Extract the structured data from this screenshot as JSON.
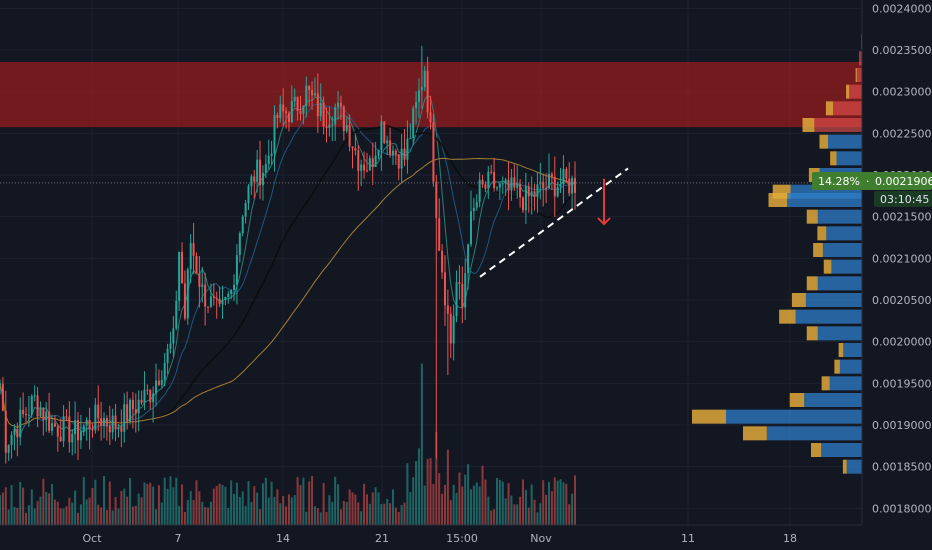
{
  "theme": {
    "background": "#131722",
    "grid": "#1e222d",
    "axis_text": "#b2b5be",
    "up": "#26a69a",
    "down": "#ef5350",
    "zone_fill": "#9b1c1c",
    "vp_blue": "#2f7fc9",
    "vp_gold": "#e0a93a",
    "ma_dark": "#0b0b0b",
    "ma_blue": "#1f5f8b",
    "ma_teal": "#2e8a7e",
    "ma_orange": "#b58a3a",
    "trend_line": "#ffffff",
    "arrow": "#e53935",
    "label_green": "#3f7d2f",
    "label_dark": "#1b3a24"
  },
  "price_axis": {
    "ticks": [
      "0.0024000",
      "0.0023500",
      "0.0023000",
      "0.0022500",
      "0.0022000",
      "0.0021500",
      "0.0021000",
      "0.0020500",
      "0.0020000",
      "0.0019500",
      "0.0019000",
      "0.0018500",
      "0.0018000"
    ]
  },
  "time_axis": {
    "ticks": [
      "Oct",
      "7",
      "14",
      "21",
      "15:00",
      "Nov",
      "11",
      "18"
    ]
  },
  "price_label": {
    "percent": "14.28%",
    "price": "0.0021906",
    "countdown": "03:10:45"
  },
  "chart_data": {
    "type": "candlestick",
    "ylim": [
      0.00175,
      0.00241
    ],
    "current_price": 0.0021906,
    "resistance_zone": [
      0.0022574,
      0.0023356
    ],
    "trend_line": {
      "from": 0.0020778,
      "to": 0.0022079
    },
    "arrow_target": 0.0021411,
    "candle_count": 200,
    "price_path": [
      [
        0,
        0.00195
      ],
      [
        2,
        0.00188
      ],
      [
        6,
        0.0019
      ],
      [
        12,
        0.00193
      ],
      [
        18,
        0.0019
      ],
      [
        26,
        0.00189
      ],
      [
        34,
        0.00191
      ],
      [
        40,
        0.0019
      ],
      [
        46,
        0.00192
      ],
      [
        52,
        0.00194
      ],
      [
        56,
        0.00197
      ],
      [
        60,
        0.002
      ],
      [
        62,
        0.00211
      ],
      [
        64,
        0.00203
      ],
      [
        66,
        0.00212
      ],
      [
        70,
        0.00206
      ],
      [
        76,
        0.00203
      ],
      [
        80,
        0.00206
      ],
      [
        84,
        0.00216
      ],
      [
        88,
        0.0022
      ],
      [
        92,
        0.00221
      ],
      [
        96,
        0.00227
      ],
      [
        102,
        0.00228
      ],
      [
        106,
        0.0023
      ],
      [
        112,
        0.00227
      ],
      [
        116,
        0.00228
      ],
      [
        120,
        0.00226
      ],
      [
        124,
        0.00222
      ],
      [
        128,
        0.00221
      ],
      [
        132,
        0.00226
      ],
      [
        136,
        0.00223
      ],
      [
        140,
        0.00222
      ],
      [
        144,
        0.00228
      ],
      [
        147,
        0.00233
      ],
      [
        149,
        0.00225
      ],
      [
        152,
        0.00212
      ],
      [
        156,
        0.002
      ],
      [
        158,
        0.00207
      ],
      [
        160,
        0.00204
      ],
      [
        162,
        0.00213
      ],
      [
        166,
        0.00218
      ],
      [
        170,
        0.00219
      ],
      [
        174,
        0.00218
      ],
      [
        178,
        0.00218
      ],
      [
        182,
        0.00217
      ],
      [
        186,
        0.00218
      ],
      [
        191,
        0.00219
      ]
    ],
    "volume_profile": [
      {
        "price": 0.00236,
        "length": 0.004,
        "color": "red"
      },
      {
        "price": 0.00234,
        "length": 0.012,
        "color": "red"
      },
      {
        "price": 0.00232,
        "length": 0.03,
        "color": "red"
      },
      {
        "price": 0.0023,
        "length": 0.075,
        "color": "red"
      },
      {
        "price": 0.00228,
        "length": 0.17,
        "color": "red"
      },
      {
        "price": 0.00226,
        "length": 0.28,
        "color": "red"
      },
      {
        "price": 0.00224,
        "length": 0.2,
        "color": "blue"
      },
      {
        "price": 0.00222,
        "length": 0.15,
        "color": "blue"
      },
      {
        "price": 0.0022,
        "length": 0.25,
        "color": "blue"
      },
      {
        "price": 0.00218,
        "length": 0.42,
        "color": "blue"
      },
      {
        "price": 0.00217,
        "length": 0.44,
        "color": "blue"
      },
      {
        "price": 0.00215,
        "length": 0.26,
        "color": "blue"
      },
      {
        "price": 0.00213,
        "length": 0.21,
        "color": "blue"
      },
      {
        "price": 0.00211,
        "length": 0.23,
        "color": "blue"
      },
      {
        "price": 0.00209,
        "length": 0.18,
        "color": "blue"
      },
      {
        "price": 0.00207,
        "length": 0.26,
        "color": "blue"
      },
      {
        "price": 0.00205,
        "length": 0.33,
        "color": "blue"
      },
      {
        "price": 0.00203,
        "length": 0.39,
        "color": "blue"
      },
      {
        "price": 0.00201,
        "length": 0.26,
        "color": "blue"
      },
      {
        "price": 0.00199,
        "length": 0.11,
        "color": "blue"
      },
      {
        "price": 0.00197,
        "length": 0.13,
        "color": "blue"
      },
      {
        "price": 0.00195,
        "length": 0.19,
        "color": "blue"
      },
      {
        "price": 0.00193,
        "length": 0.34,
        "color": "blue"
      },
      {
        "price": 0.00191,
        "length": 0.8,
        "color": "blue"
      },
      {
        "price": 0.00189,
        "length": 0.56,
        "color": "blue"
      },
      {
        "price": 0.00187,
        "length": 0.24,
        "color": "blue"
      },
      {
        "price": 0.00185,
        "length": 0.09,
        "color": "blue"
      }
    ]
  }
}
